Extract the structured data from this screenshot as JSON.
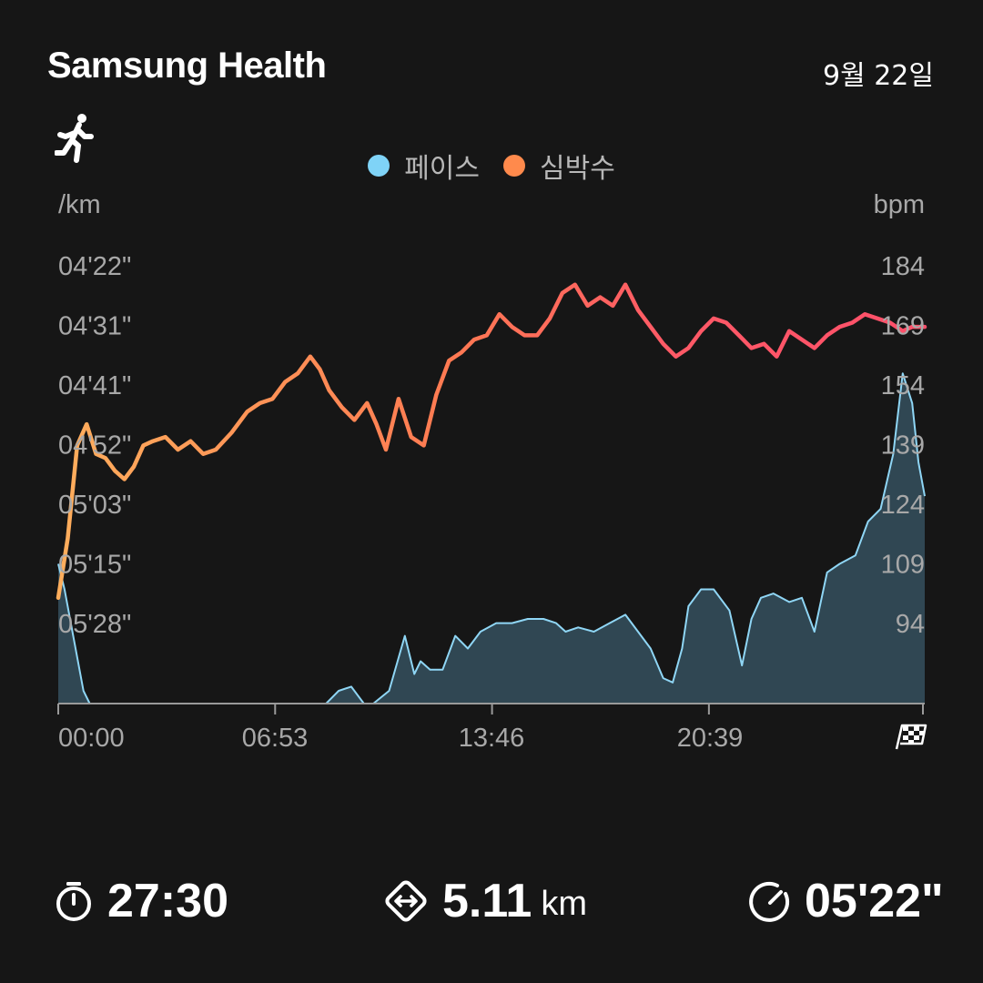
{
  "header": {
    "title": "Samsung Health",
    "date": "9월 22일"
  },
  "activity": {
    "icon": "running-person-icon"
  },
  "legend": [
    {
      "label": "페이스",
      "color": "#7fd3f7"
    },
    {
      "label": "심박수",
      "color": "#ff8a4c"
    }
  ],
  "chart_data": {
    "type": "line",
    "left_axis_unit": "/km",
    "right_axis_unit": "bpm",
    "left_tick_labels": [
      "04'22\"",
      "04'31\"",
      "04'41\"",
      "04'52\"",
      "05'03\"",
      "05'15\"",
      "05'28\""
    ],
    "right_tick_labels": [
      "184",
      "169",
      "154",
      "139",
      "124",
      "109",
      "94"
    ],
    "x_tick_labels": [
      "00:00",
      "06:53",
      "13:46",
      "20:39"
    ],
    "x_ticks_min": [
      0,
      6.883,
      13.767,
      20.65
    ],
    "x_range": [
      0,
      27.5
    ],
    "y_right_range": [
      79,
      199
    ],
    "finish_icon": "checkered-flag-icon",
    "series": [
      {
        "name": "심박수",
        "unit": "bpm",
        "x": [
          0,
          0.3,
          0.6,
          0.9,
          1.2,
          1.5,
          1.8,
          2.1,
          2.4,
          2.7,
          3.0,
          3.4,
          3.8,
          4.2,
          4.6,
          5.0,
          5.5,
          6.0,
          6.4,
          6.8,
          7.2,
          7.6,
          8.0,
          8.3,
          8.6,
          9.0,
          9.4,
          9.8,
          10.1,
          10.4,
          10.8,
          11.2,
          11.6,
          12.0,
          12.4,
          12.8,
          13.2,
          13.6,
          14.0,
          14.4,
          14.8,
          15.2,
          15.6,
          16.0,
          16.4,
          16.8,
          17.2,
          17.6,
          18.0,
          18.4,
          18.8,
          19.2,
          19.6,
          20.0,
          20.4,
          20.8,
          21.2,
          21.6,
          22.0,
          22.4,
          22.8,
          23.2,
          23.6,
          24.0,
          24.4,
          24.8,
          25.2,
          25.6,
          26.0,
          26.4,
          26.8,
          27.1,
          27.5
        ],
        "values": [
          104,
          118,
          140,
          145,
          138,
          137,
          134,
          132,
          135,
          140,
          141,
          142,
          139,
          141,
          138,
          139,
          143,
          148,
          150,
          151,
          155,
          157,
          161,
          158,
          153,
          149,
          146,
          150,
          145,
          139,
          151,
          142,
          140,
          152,
          160,
          162,
          165,
          166,
          171,
          168,
          166,
          166,
          170,
          176,
          178,
          173,
          175,
          173,
          178,
          172,
          168,
          164,
          161,
          163,
          167,
          170,
          169,
          166,
          163,
          164,
          161,
          167,
          165,
          163,
          166,
          168,
          169,
          171,
          170,
          169,
          167,
          168,
          168
        ]
      },
      {
        "name": "페이스",
        "unit": "bpm-scale",
        "x": [
          0,
          0.2,
          0.5,
          0.8,
          1.0,
          1.1,
          3.5,
          3.9,
          4.1,
          6.4,
          6.6,
          6.9,
          7.2,
          7.5,
          8.0,
          8.5,
          8.9,
          9.3,
          9.7,
          10.0,
          10.5,
          11.0,
          11.3,
          11.5,
          11.8,
          12.2,
          12.6,
          13.0,
          13.4,
          13.9,
          14.4,
          14.9,
          15.4,
          15.8,
          16.1,
          16.5,
          17.0,
          17.5,
          18.0,
          18.4,
          18.8,
          19.2,
          19.5,
          19.8,
          20.0,
          20.4,
          20.8,
          21.3,
          21.7,
          22.0,
          22.3,
          22.7,
          23.2,
          23.6,
          24.0,
          24.4,
          24.8,
          25.3,
          25.7,
          26.1,
          26.5,
          26.8,
          27.1,
          27.3,
          27.5
        ],
        "values": [
          112,
          106,
          94,
          82,
          72,
          60,
          60,
          64,
          60,
          60,
          66,
          72,
          69,
          67,
          73,
          76,
          82,
          83,
          79,
          78,
          82,
          95,
          86,
          89,
          87,
          87,
          95,
          92,
          96,
          98,
          98,
          99,
          99,
          98,
          96,
          97,
          96,
          98,
          100,
          96,
          92,
          85,
          84,
          92,
          102,
          106,
          106,
          101,
          88,
          99,
          104,
          105,
          103,
          104,
          96,
          110,
          112,
          114,
          122,
          125,
          138,
          157,
          150,
          136,
          128
        ]
      }
    ]
  },
  "stats": {
    "duration": {
      "value": "27:30",
      "icon": "stopwatch-icon"
    },
    "distance": {
      "value": "5.11",
      "unit": "km",
      "icon": "distance-icon"
    },
    "pace": {
      "value": "05'22\"",
      "icon": "speedometer-icon"
    }
  }
}
